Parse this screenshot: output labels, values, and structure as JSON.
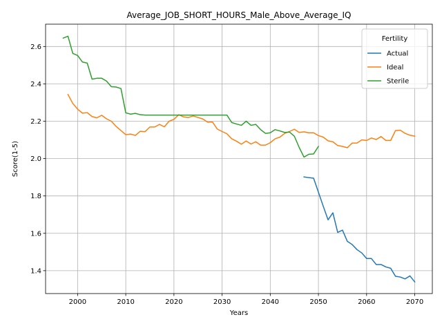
{
  "chart_data": {
    "type": "line",
    "title": "Average_JOB_SHORT_HOURS_Male_Above_Average_IQ",
    "xlabel": "Years",
    "ylabel": "Score(1-5)",
    "xlim": [
      1993.35,
      2073.65
    ],
    "ylim": [
      1.2775,
      2.7195
    ],
    "xticks": [
      2000,
      2010,
      2020,
      2030,
      2040,
      2050,
      2060,
      2070
    ],
    "xtick_labels": [
      "2000",
      "2010",
      "2020",
      "2030",
      "2040",
      "2050",
      "2060",
      "2070"
    ],
    "yticks": [
      1.4,
      1.6,
      1.8,
      2.0,
      2.2,
      2.4,
      2.6
    ],
    "ytick_labels": [
      "1.4",
      "1.6",
      "1.8",
      "2.0",
      "2.2",
      "2.4",
      "2.6"
    ],
    "grid": true,
    "legend": {
      "title": "Fertility",
      "placement": "top-right"
    },
    "series": [
      {
        "name": "Actual",
        "color": "#1f77b4",
        "x": [
          2047,
          2048,
          2049,
          2050,
          2051,
          2052,
          2053,
          2054,
          2055,
          2056,
          2057,
          2058,
          2059,
          2060,
          2061,
          2062,
          2063,
          2064,
          2065,
          2066,
          2067,
          2068,
          2069,
          2070
        ],
        "y": [
          1.902,
          1.898,
          1.895,
          1.82,
          1.745,
          1.672,
          1.71,
          1.605,
          1.617,
          1.557,
          1.54,
          1.513,
          1.495,
          1.465,
          1.465,
          1.433,
          1.433,
          1.42,
          1.413,
          1.37,
          1.366,
          1.356,
          1.372,
          1.34
        ]
      },
      {
        "name": "Ideal",
        "color": "#ff7f0e",
        "x": [
          1998,
          1999,
          2000,
          2001,
          2002,
          2003,
          2004,
          2005,
          2006,
          2007,
          2008,
          2009,
          2010,
          2011,
          2012,
          2013,
          2014,
          2015,
          2016,
          2017,
          2018,
          2019,
          2020,
          2021,
          2022,
          2023,
          2024,
          2025,
          2026,
          2027,
          2028,
          2029,
          2030,
          2031,
          2032,
          2033,
          2034,
          2035,
          2036,
          2037,
          2038,
          2039,
          2040,
          2041,
          2042,
          2043,
          2044,
          2045,
          2046,
          2047,
          2048,
          2049,
          2050,
          2051,
          2052,
          2053,
          2054,
          2055,
          2056,
          2057,
          2058,
          2059,
          2060,
          2061,
          2062,
          2063,
          2064,
          2065,
          2066,
          2067,
          2068,
          2069,
          2070
        ],
        "y": [
          2.343,
          2.295,
          2.265,
          2.243,
          2.246,
          2.225,
          2.218,
          2.232,
          2.213,
          2.2,
          2.172,
          2.15,
          2.128,
          2.131,
          2.124,
          2.146,
          2.144,
          2.169,
          2.169,
          2.183,
          2.17,
          2.2,
          2.21,
          2.235,
          2.223,
          2.22,
          2.228,
          2.22,
          2.212,
          2.195,
          2.196,
          2.158,
          2.145,
          2.133,
          2.106,
          2.093,
          2.077,
          2.094,
          2.078,
          2.09,
          2.072,
          2.072,
          2.085,
          2.106,
          2.115,
          2.135,
          2.145,
          2.157,
          2.14,
          2.143,
          2.138,
          2.138,
          2.123,
          2.115,
          2.095,
          2.09,
          2.07,
          2.065,
          2.058,
          2.083,
          2.083,
          2.1,
          2.097,
          2.11,
          2.102,
          2.118,
          2.097,
          2.097,
          2.15,
          2.152,
          2.135,
          2.125,
          2.12
        ]
      },
      {
        "name": "Sterile",
        "color": "#2ca02c",
        "x": [
          1997,
          1998,
          1999,
          2000,
          2001,
          2002,
          2003,
          2004,
          2005,
          2006,
          2007,
          2008,
          2009,
          2010,
          2011,
          2012,
          2013,
          2014,
          2015,
          2016,
          2017,
          2018,
          2019,
          2020,
          2021,
          2022,
          2023,
          2024,
          2025,
          2026,
          2027,
          2028,
          2029,
          2030,
          2031,
          2032,
          2033,
          2034,
          2035,
          2036,
          2037,
          2038,
          2039,
          2040,
          2041,
          2042,
          2043,
          2044,
          2045,
          2046,
          2047,
          2048,
          2049,
          2050
        ],
        "y": [
          2.645,
          2.655,
          2.563,
          2.552,
          2.517,
          2.511,
          2.425,
          2.43,
          2.43,
          2.415,
          2.385,
          2.383,
          2.375,
          2.245,
          2.238,
          2.242,
          2.235,
          2.233,
          2.233,
          2.233,
          2.233,
          2.233,
          2.233,
          2.233,
          2.233,
          2.233,
          2.233,
          2.233,
          2.233,
          2.233,
          2.233,
          2.233,
          2.233,
          2.233,
          2.233,
          2.193,
          2.185,
          2.178,
          2.2,
          2.178,
          2.183,
          2.155,
          2.135,
          2.138,
          2.155,
          2.148,
          2.14,
          2.142,
          2.12,
          2.06,
          2.008,
          2.023,
          2.025,
          2.065
        ]
      }
    ]
  }
}
